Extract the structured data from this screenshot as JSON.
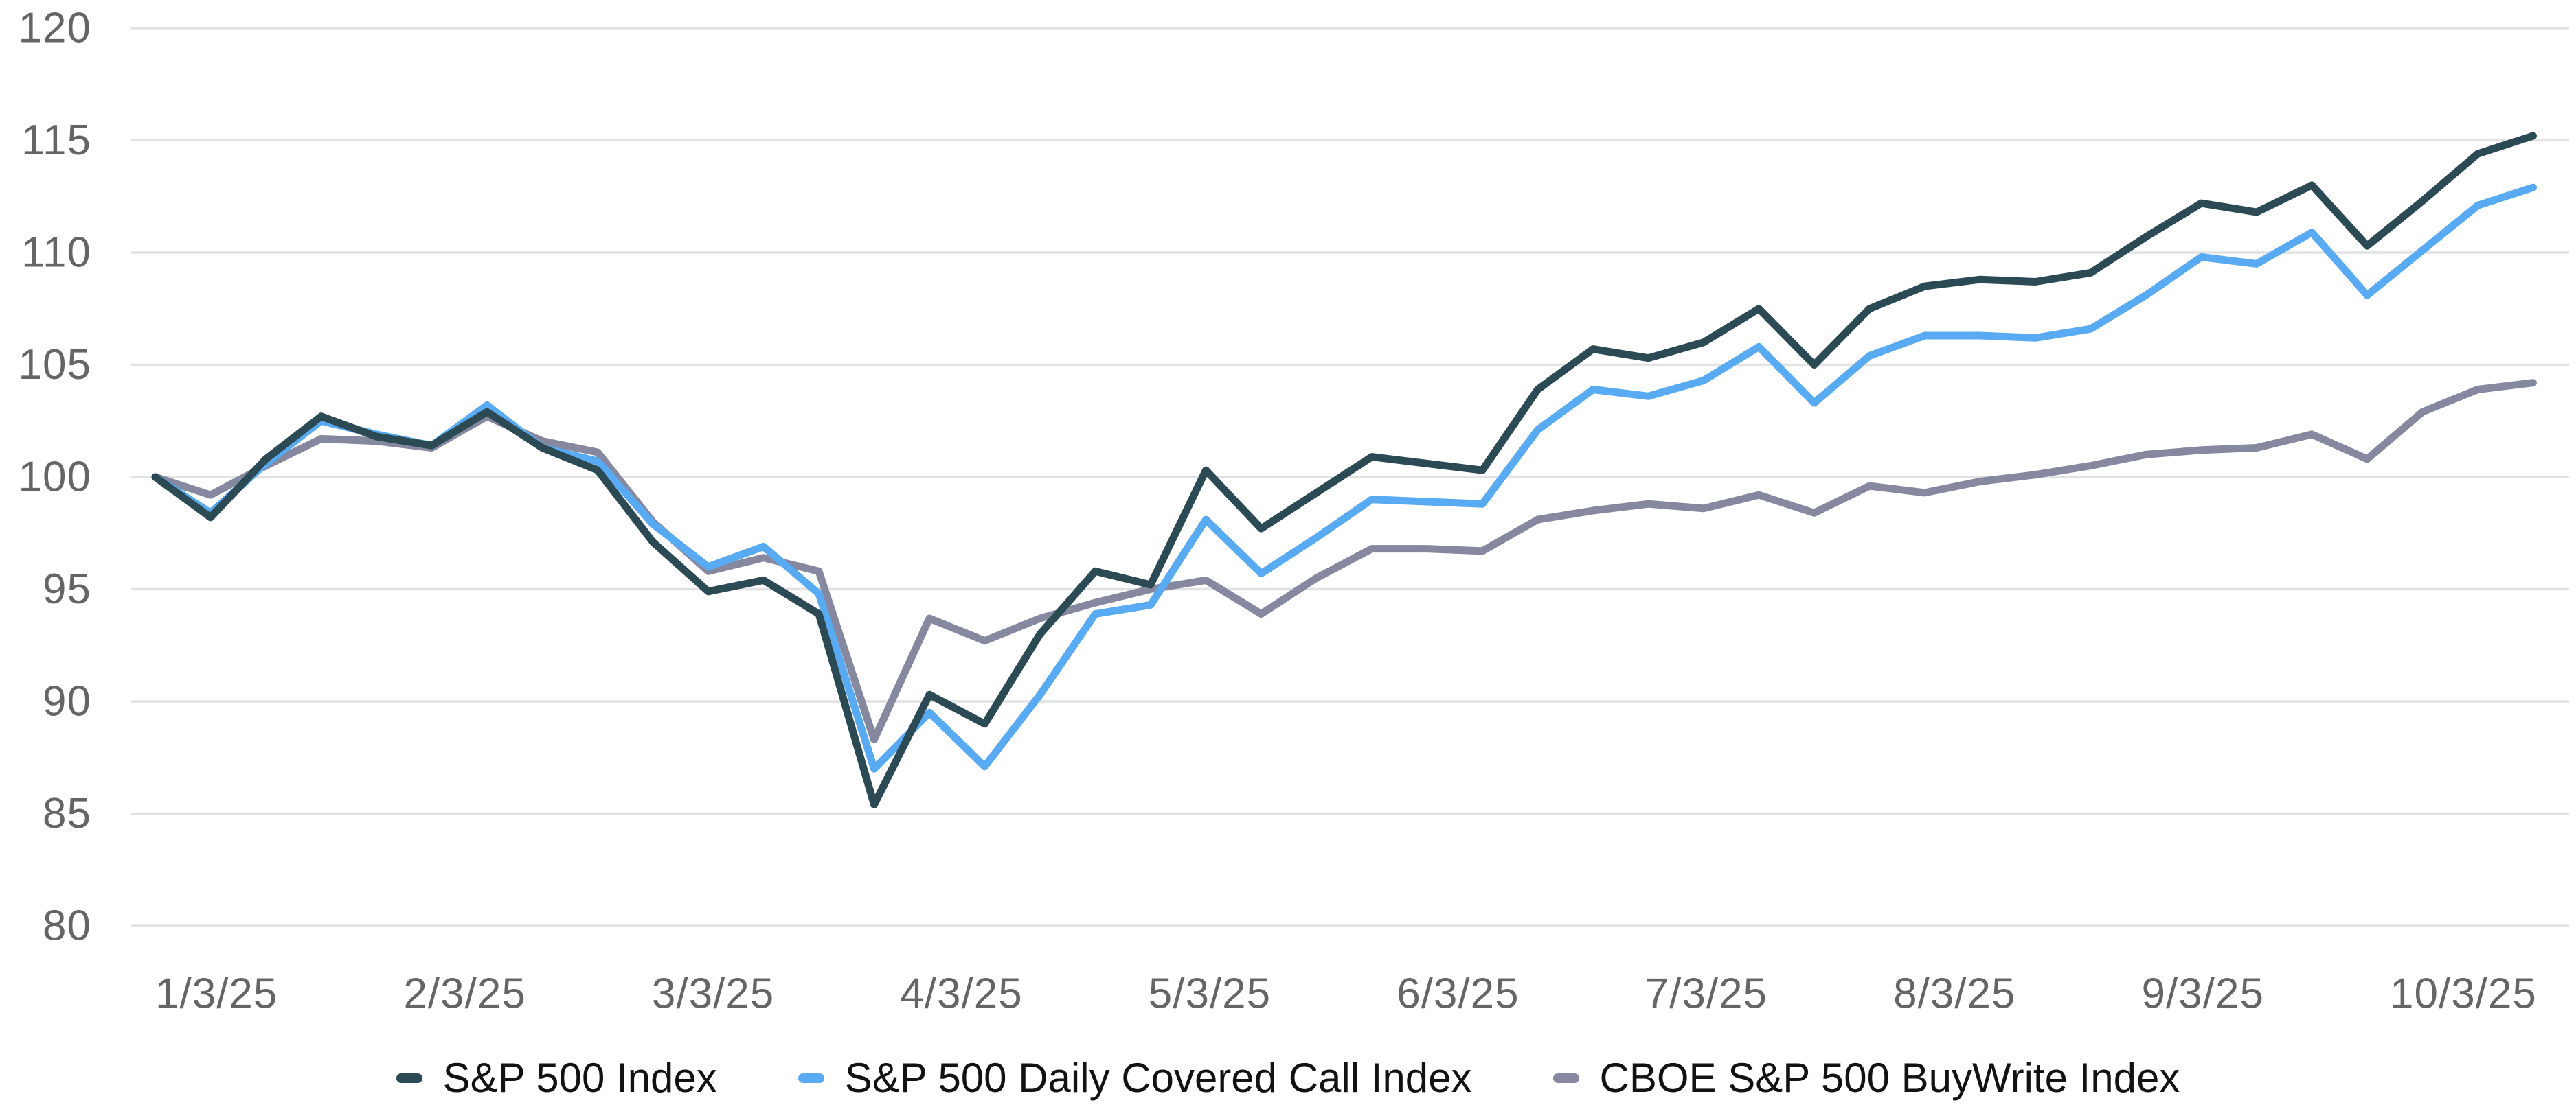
{
  "chart": {
    "background_color": "#ffffff",
    "gridline_color": "#e1e2e3",
    "axis_label_color": "#656567",
    "legend_text_color": "#101214"
  },
  "chart_data": {
    "type": "line",
    "title": "",
    "xlabel": "",
    "ylabel": "",
    "grid": "horizontal-only",
    "legend_position": "bottom",
    "y_axis": {
      "min": 80,
      "max": 120,
      "step": 5,
      "tick_labels": [
        "80",
        "85",
        "90",
        "95",
        "100",
        "105",
        "110",
        "115",
        "120"
      ]
    },
    "x_axis": {
      "unit": "weeks",
      "total_weeks": 43,
      "tick_labels": [
        "1/3/25",
        "2/3/25",
        "3/3/25",
        "4/3/25",
        "5/3/25",
        "6/3/25",
        "7/3/25",
        "8/3/25",
        "9/3/25",
        "10/3/25"
      ],
      "tick_week_positions": [
        0,
        4.49,
        8.98,
        13.47,
        17.96,
        22.45,
        26.94,
        31.43,
        35.92,
        40.41
      ]
    },
    "series": [
      {
        "name": "S&P 500 Index",
        "color": "#2b4a54",
        "values": [
          100,
          98.2,
          100.8,
          102.7,
          101.8,
          101.4,
          102.9,
          101.3,
          100.3,
          97.1,
          94.9,
          95.4,
          93.9,
          85.4,
          90.3,
          89.0,
          93.0,
          95.8,
          95.2,
          100.3,
          97.7,
          99.3,
          100.9,
          100.6,
          100.3,
          103.9,
          105.7,
          105.3,
          106.0,
          107.5,
          105.0,
          107.5,
          108.5,
          108.8,
          108.7,
          109.1,
          110.7,
          112.2,
          111.8,
          113.0,
          110.3,
          112.3,
          114.4,
          115.2
        ]
      },
      {
        "name": "S&P 500 Daily Covered Call Index",
        "color": "#58aaf2",
        "values": [
          100,
          98.4,
          100.6,
          102.5,
          101.9,
          101.4,
          103.2,
          101.3,
          100.7,
          97.9,
          96.0,
          96.9,
          94.8,
          87.0,
          89.5,
          87.1,
          90.3,
          93.9,
          94.3,
          98.1,
          95.7,
          97.3,
          99.0,
          98.9,
          98.8,
          102.1,
          103.9,
          103.6,
          104.3,
          105.8,
          103.3,
          105.4,
          106.3,
          106.3,
          106.2,
          106.6,
          108.1,
          109.8,
          109.5,
          110.9,
          108.1,
          110.1,
          112.1,
          112.9
        ]
      },
      {
        "name": "CBOE S&P 500 BuyWrite Index",
        "color": "#85889e",
        "values": [
          100,
          99.2,
          100.5,
          101.7,
          101.6,
          101.3,
          102.7,
          101.6,
          101.1,
          98.0,
          95.8,
          96.4,
          95.8,
          88.3,
          93.7,
          92.7,
          93.7,
          94.4,
          95.0,
          95.4,
          93.9,
          95.5,
          96.8,
          96.8,
          96.7,
          98.1,
          98.5,
          98.8,
          98.6,
          99.2,
          98.4,
          99.6,
          99.3,
          99.8,
          100.1,
          100.5,
          101.0,
          101.2,
          101.3,
          101.9,
          100.8,
          102.9,
          103.9,
          104.2
        ]
      }
    ]
  }
}
